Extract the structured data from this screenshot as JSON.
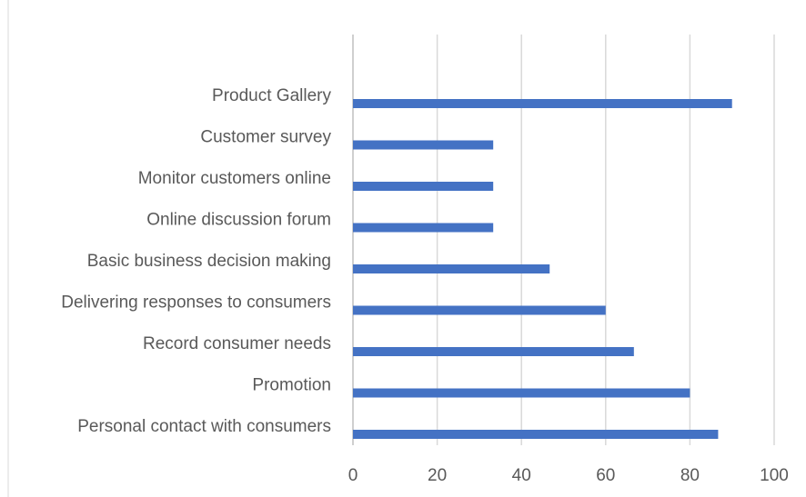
{
  "chart_data": {
    "type": "bar",
    "orientation": "horizontal",
    "categories": [
      "Product Gallery",
      "Customer survey",
      "Monitor customers online",
      "Online discussion forum",
      "Basic business decision making",
      "Delivering responses to consumers",
      "Record consumer needs",
      "Promotion",
      "Personal contact with consumers"
    ],
    "values": [
      90,
      33.3,
      33.3,
      33.3,
      46.7,
      60,
      66.7,
      80,
      86.7
    ],
    "xlim": [
      0,
      100
    ],
    "xticks": [
      "0",
      "20",
      "40",
      "60",
      "80",
      "100"
    ],
    "grid": true,
    "legend": "none",
    "colors": {
      "bar": "#4472C4",
      "grid": "#D9D9D9",
      "text": "#595959"
    }
  }
}
